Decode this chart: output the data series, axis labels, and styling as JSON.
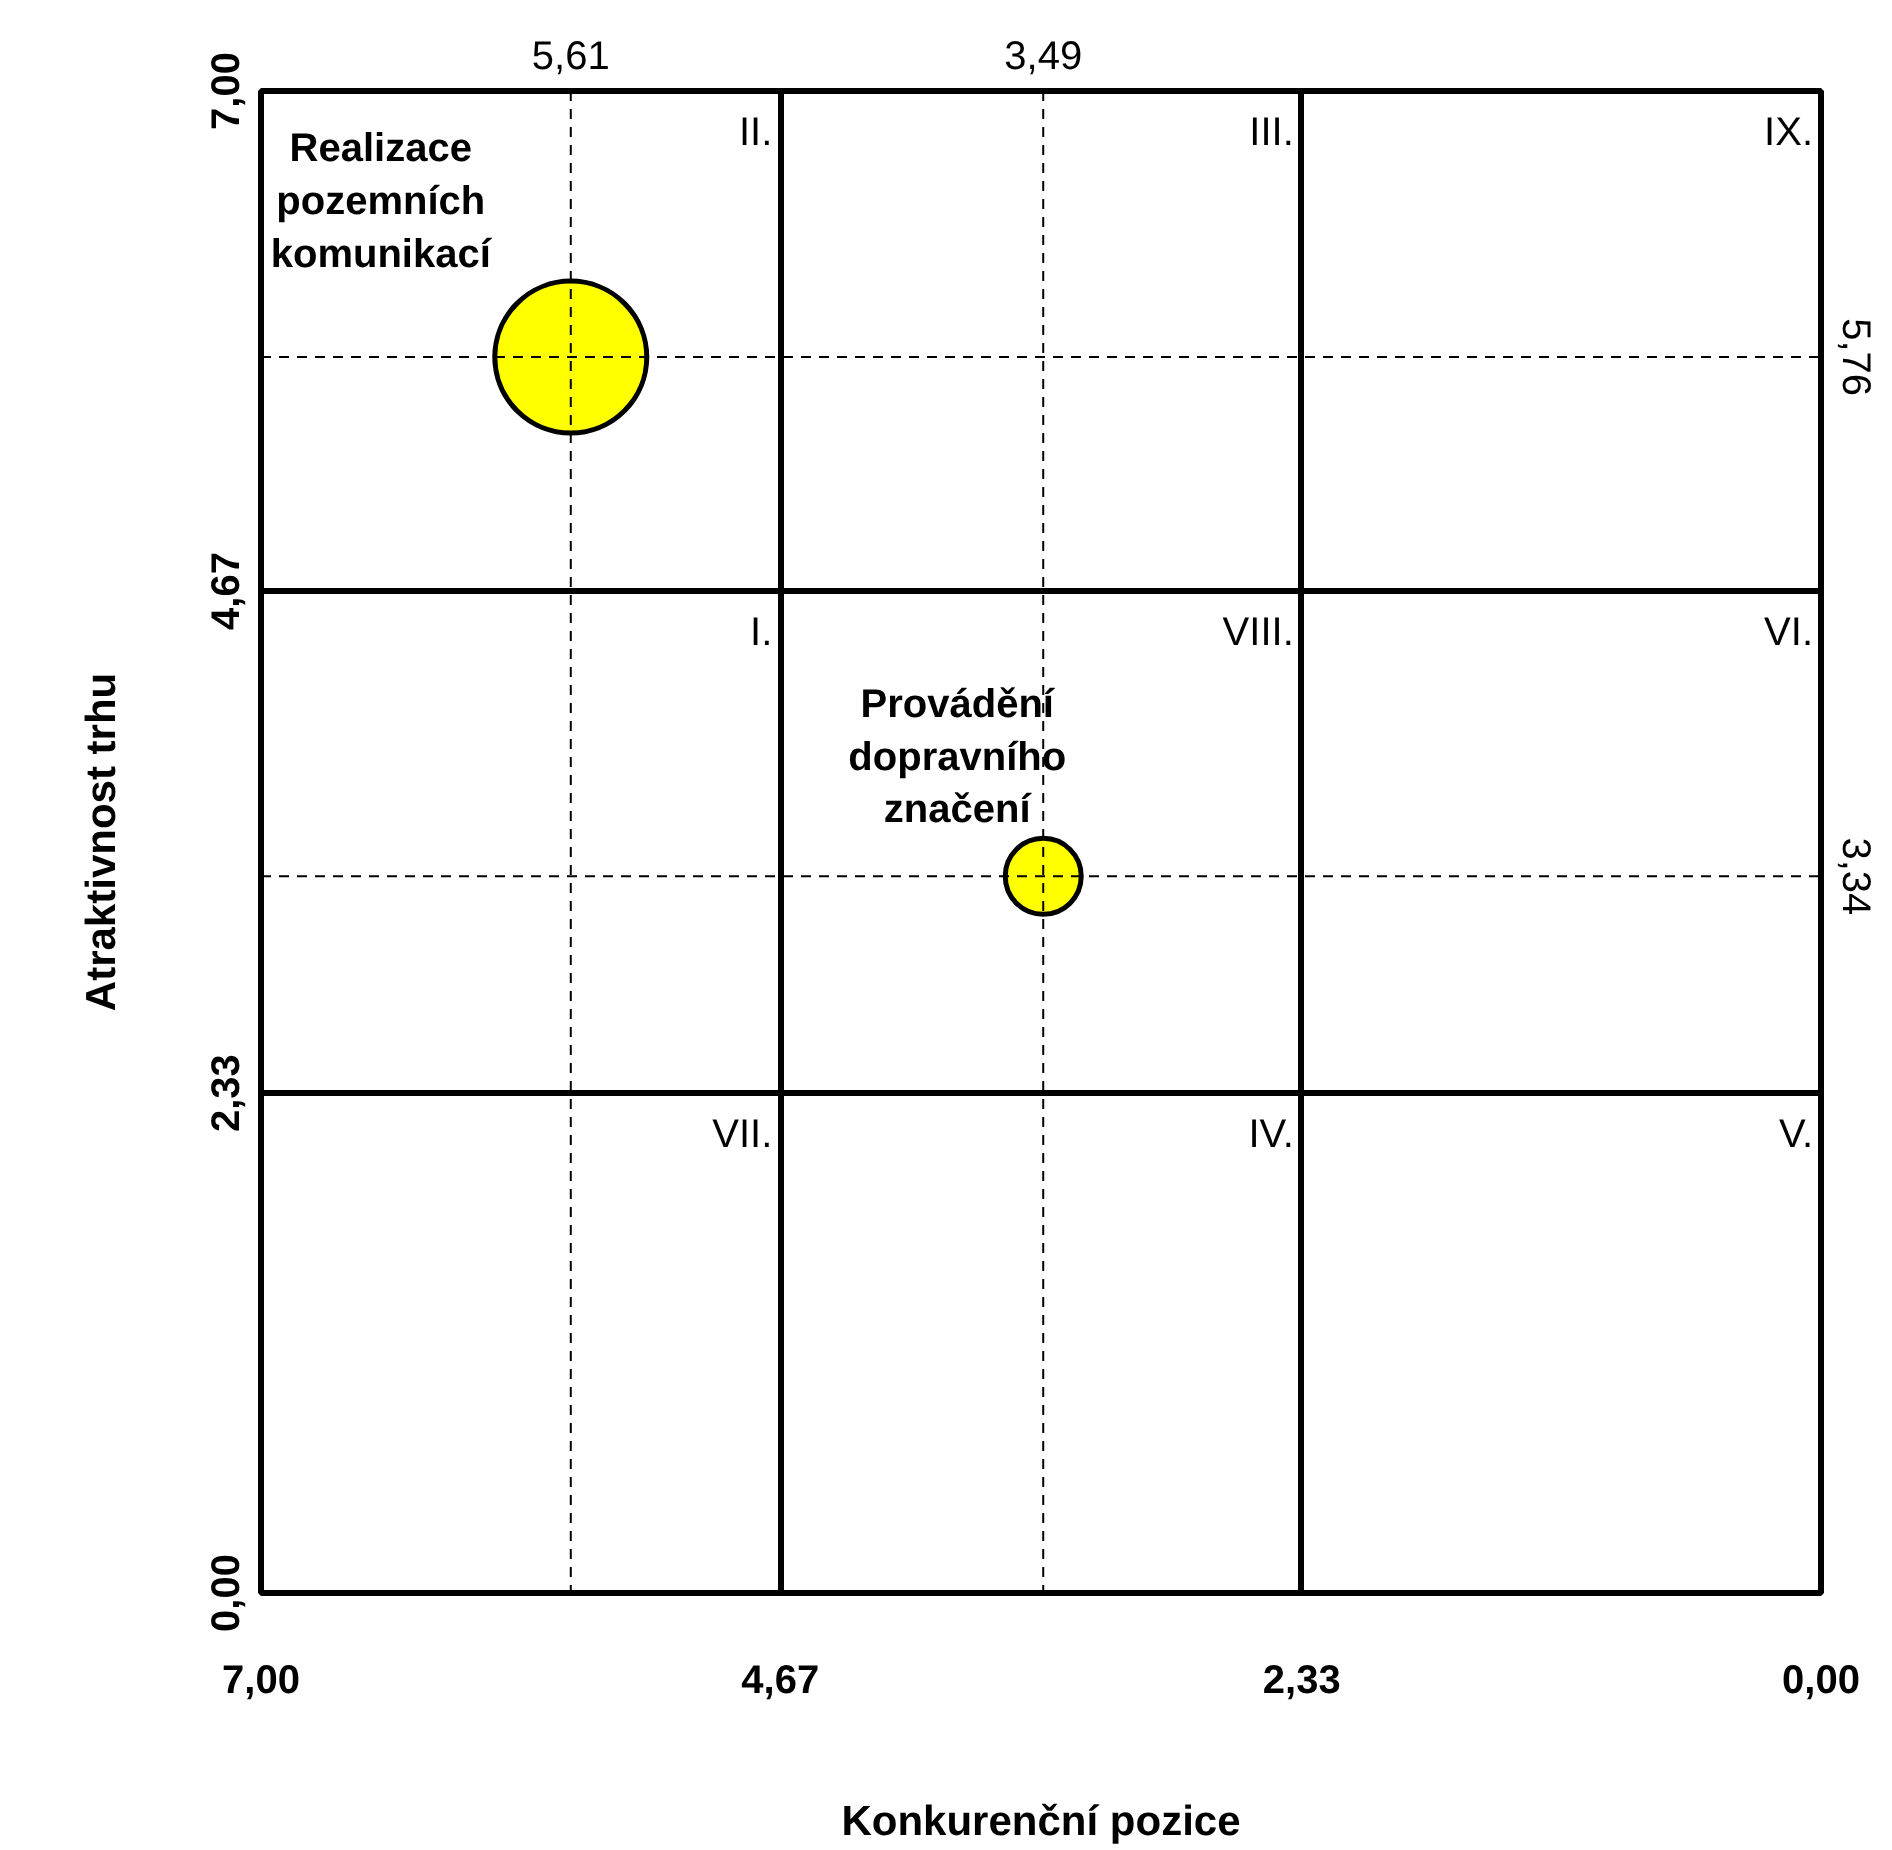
{
  "chart_data": {
    "type": "bubble",
    "xlabel": "Konkurenční pozice",
    "ylabel": "Atraktivnost trhu",
    "xlim": [
      7,
      0
    ],
    "ylim": [
      0,
      7
    ],
    "xticks": [
      {
        "value": 7,
        "label": "7,00"
      },
      {
        "value": 4.67,
        "label": "4,67"
      },
      {
        "value": 2.33,
        "label": "2,33"
      },
      {
        "value": 0,
        "label": "0,00"
      }
    ],
    "yticks": [
      {
        "value": 0,
        "label": "0,00"
      },
      {
        "value": 2.33,
        "label": "2,33"
      },
      {
        "value": 4.67,
        "label": "4,67"
      },
      {
        "value": 7,
        "label": "7,00"
      }
    ],
    "grid": true,
    "marker": "circle",
    "series": [
      {
        "name": "Realizace pozemních komunikací",
        "color": "#ffff00",
        "x": [
          5.61
        ],
        "values": [
          5.76
        ],
        "sizes": [
          1
        ]
      },
      {
        "name": "Provádění dopravního značení",
        "color": "#ffff00",
        "x": [
          3.49
        ],
        "values": [
          3.34
        ],
        "sizes": [
          0.25
        ]
      }
    ],
    "ref_lines": [
      {
        "axis": "x",
        "value": 5.61,
        "label": "5,61",
        "line_style": "dashed"
      },
      {
        "axis": "x",
        "value": 3.49,
        "label": "3,49",
        "line_style": "dashed"
      },
      {
        "axis": "y",
        "value": 5.76,
        "label": "5,76",
        "line_style": "dashed"
      },
      {
        "axis": "y",
        "value": 3.34,
        "label": "3,34",
        "line_style": "dashed"
      }
    ],
    "annotations": [
      "II.",
      "III.",
      "IX.",
      "I.",
      "VIII.",
      "VI.",
      "VII.",
      "IV.",
      "V."
    ]
  }
}
